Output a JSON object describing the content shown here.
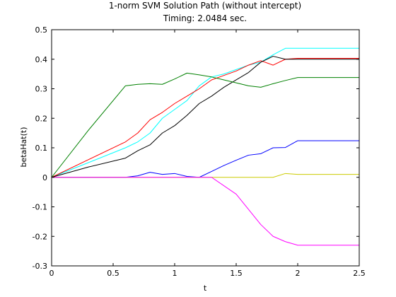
{
  "chart_data": {
    "type": "line",
    "title": "1-norm SVM Solution Path (without intercept)",
    "subtitle": "Timing: 2.0484 sec.",
    "xlabel": "t",
    "ylabel": "betaHat(t)",
    "xlim": [
      0,
      2.5
    ],
    "ylim": [
      -0.3,
      0.5
    ],
    "xticks": [
      "0",
      "0.5",
      "1",
      "1.5",
      "2",
      "2.5"
    ],
    "yticks": [
      "-0.3",
      "-0.2",
      "-0.1",
      "0",
      "0.1",
      "0.2",
      "0.3",
      "0.4",
      "0.5"
    ],
    "grid": false,
    "series": [
      {
        "color": "#00ffff",
        "points": [
          [
            0,
            0
          ],
          [
            0.3,
            0.05
          ],
          [
            0.6,
            0.1
          ],
          [
            0.7,
            0.12
          ],
          [
            0.8,
            0.15
          ],
          [
            0.9,
            0.2
          ],
          [
            1.0,
            0.23
          ],
          [
            1.1,
            0.26
          ],
          [
            1.2,
            0.31
          ],
          [
            1.3,
            0.34
          ],
          [
            1.4,
            0.35
          ],
          [
            1.5,
            0.365
          ],
          [
            1.6,
            0.38
          ],
          [
            1.7,
            0.39
          ],
          [
            1.8,
            0.415
          ],
          [
            1.9,
            0.437
          ],
          [
            2.0,
            0.437
          ],
          [
            2.5,
            0.437
          ]
        ]
      },
      {
        "color": "#ff0000",
        "points": [
          [
            0,
            0
          ],
          [
            0.3,
            0.06
          ],
          [
            0.6,
            0.12
          ],
          [
            0.7,
            0.15
          ],
          [
            0.8,
            0.195
          ],
          [
            0.9,
            0.22
          ],
          [
            1.0,
            0.25
          ],
          [
            1.1,
            0.275
          ],
          [
            1.2,
            0.3
          ],
          [
            1.3,
            0.33
          ],
          [
            1.4,
            0.345
          ],
          [
            1.5,
            0.36
          ],
          [
            1.6,
            0.38
          ],
          [
            1.7,
            0.395
          ],
          [
            1.8,
            0.38
          ],
          [
            1.9,
            0.4
          ],
          [
            2.0,
            0.403
          ],
          [
            2.5,
            0.403
          ]
        ]
      },
      {
        "color": "#000000",
        "points": [
          [
            0,
            0
          ],
          [
            0.3,
            0.035
          ],
          [
            0.6,
            0.065
          ],
          [
            0.7,
            0.09
          ],
          [
            0.8,
            0.11
          ],
          [
            0.9,
            0.15
          ],
          [
            1.0,
            0.175
          ],
          [
            1.1,
            0.21
          ],
          [
            1.2,
            0.25
          ],
          [
            1.3,
            0.275
          ],
          [
            1.4,
            0.305
          ],
          [
            1.5,
            0.33
          ],
          [
            1.6,
            0.355
          ],
          [
            1.7,
            0.39
          ],
          [
            1.8,
            0.41
          ],
          [
            1.9,
            0.4
          ],
          [
            2.0,
            0.4
          ],
          [
            2.5,
            0.4
          ]
        ]
      },
      {
        "color": "#008000",
        "points": [
          [
            0,
            0
          ],
          [
            0.3,
            0.16
          ],
          [
            0.6,
            0.31
          ],
          [
            0.7,
            0.315
          ],
          [
            0.8,
            0.317
          ],
          [
            0.9,
            0.315
          ],
          [
            1.0,
            0.333
          ],
          [
            1.1,
            0.353
          ],
          [
            1.2,
            0.347
          ],
          [
            1.3,
            0.34
          ],
          [
            1.4,
            0.33
          ],
          [
            1.5,
            0.32
          ],
          [
            1.6,
            0.31
          ],
          [
            1.7,
            0.305
          ],
          [
            1.8,
            0.317
          ],
          [
            1.9,
            0.328
          ],
          [
            2.0,
            0.338
          ],
          [
            2.5,
            0.338
          ]
        ]
      },
      {
        "color": "#0000ff",
        "points": [
          [
            0,
            0
          ],
          [
            0.6,
            0
          ],
          [
            0.7,
            0.005
          ],
          [
            0.8,
            0.017
          ],
          [
            0.9,
            0.01
          ],
          [
            1.0,
            0.013
          ],
          [
            1.1,
            0.003
          ],
          [
            1.2,
            0
          ],
          [
            1.3,
            0.02
          ],
          [
            1.4,
            0.04
          ],
          [
            1.5,
            0.058
          ],
          [
            1.6,
            0.075
          ],
          [
            1.7,
            0.08
          ],
          [
            1.8,
            0.1
          ],
          [
            1.9,
            0.101
          ],
          [
            2.0,
            0.124
          ],
          [
            2.5,
            0.124
          ]
        ]
      },
      {
        "color": "#cccc00",
        "points": [
          [
            0,
            0
          ],
          [
            1.8,
            0
          ],
          [
            1.9,
            0.013
          ],
          [
            2.0,
            0.01
          ],
          [
            2.5,
            0.01
          ]
        ]
      },
      {
        "color": "#ff00ff",
        "points": [
          [
            0,
            0
          ],
          [
            1.3,
            0
          ],
          [
            1.5,
            -0.057
          ],
          [
            1.7,
            -0.16
          ],
          [
            1.8,
            -0.2
          ],
          [
            1.9,
            -0.218
          ],
          [
            2.0,
            -0.23
          ],
          [
            2.5,
            -0.23
          ]
        ]
      }
    ]
  }
}
